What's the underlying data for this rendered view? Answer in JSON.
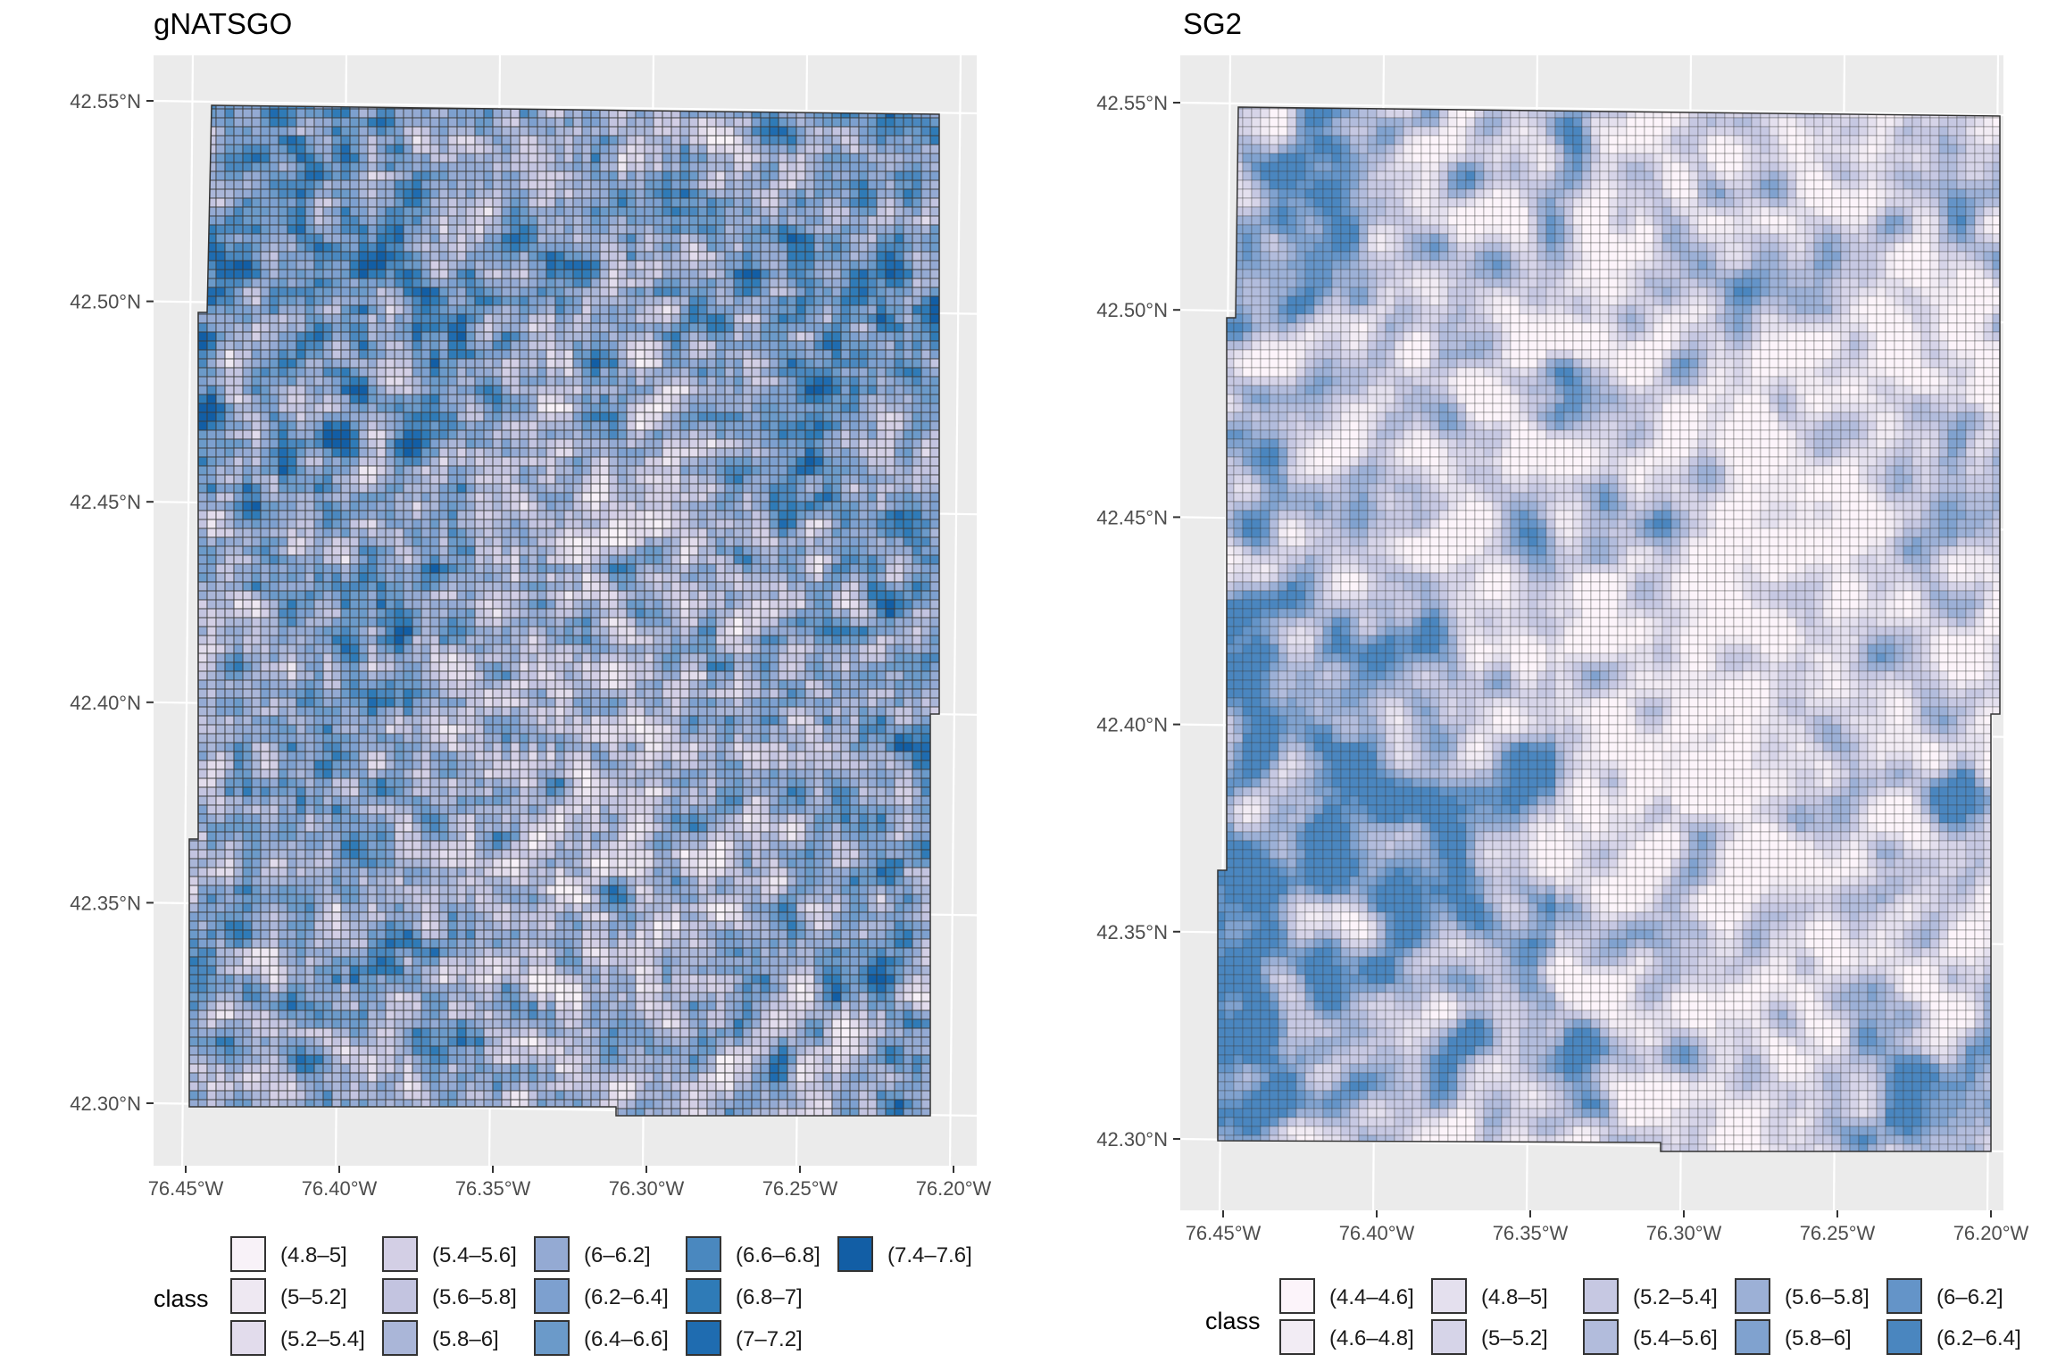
{
  "chart_data": [
    {
      "type": "heatmap",
      "title": "gNATSGO",
      "x_ticks": [
        "76.45°W",
        "76.40°W",
        "76.35°W",
        "76.30°W",
        "76.25°W",
        "76.20°W"
      ],
      "y_ticks": [
        "42.55°N",
        "42.50°N",
        "42.45°N",
        "42.40°N",
        "42.35°N",
        "42.30°N"
      ],
      "xlim": [
        -76.455,
        -76.185
      ],
      "ylim": [
        42.285,
        42.56
      ],
      "legend_title": "class",
      "legend_position": "bottom",
      "classes": [
        "(4.8–5]",
        "(5–5.2]",
        "(5.2–5.4]",
        "(5.4–5.6]",
        "(5.6–5.8]",
        "(5.8–6]",
        "(6–6.2]",
        "(6.2–6.4]",
        "(6.4–6.6]",
        "(6.6–6.8]",
        "(6.8–7]",
        "(7–7.2]",
        "(7.4–7.6]"
      ],
      "colors": [
        "#f8f2f8",
        "#eee8f2",
        "#e2dcec",
        "#d3cfe5",
        "#c3c4e0",
        "#aab6d8",
        "#94aad3",
        "#7da0cf",
        "#6b9ac9",
        "#4a88bf",
        "#2f7bb7",
        "#1f6cb0",
        "#125ea5"
      ]
    },
    {
      "type": "heatmap",
      "title": "SG2",
      "x_ticks": [
        "76.45°W",
        "76.40°W",
        "76.35°W",
        "76.30°W",
        "76.25°W",
        "76.20°W"
      ],
      "y_ticks": [
        "42.55°N",
        "42.50°N",
        "42.45°N",
        "42.40°N",
        "42.35°N",
        "42.30°N"
      ],
      "xlim": [
        -76.455,
        -76.185
      ],
      "ylim": [
        42.285,
        42.56
      ],
      "legend_title": "class",
      "legend_position": "bottom",
      "classes": [
        "(4.4–4.6]",
        "(4.6–4.8]",
        "(4.8–5]",
        "(5–5.2]",
        "(5.2–5.4]",
        "(5.4–5.6]",
        "(5.6–5.8]",
        "(5.8–6]",
        "(6–6.2]",
        "(6.2–6.4]"
      ],
      "colors": [
        "#fcf4fa",
        "#f2ecf4",
        "#e4e0ee",
        "#d6d4e8",
        "#c6c8e2",
        "#b2bcdc",
        "#9cb0d6",
        "#80a2cf",
        "#6494c8",
        "#4a86bf"
      ]
    }
  ]
}
